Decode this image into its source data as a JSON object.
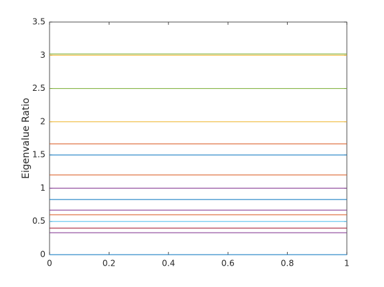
{
  "chart_data": {
    "type": "line",
    "y_label": "Eigenvalue Ratio",
    "x": [
      0,
      1
    ],
    "series": [
      {
        "color": "#77ac30",
        "values": [
          3.02,
          3.02
        ]
      },
      {
        "color": "#edb120",
        "values": [
          3.0,
          3.0
        ]
      },
      {
        "color": "#77ac30",
        "values": [
          2.5,
          2.5
        ]
      },
      {
        "color": "#edb120",
        "values": [
          2.0,
          2.0
        ]
      },
      {
        "color": "#d95319",
        "values": [
          1.667,
          1.667
        ]
      },
      {
        "color": "#0072bd",
        "values": [
          1.5,
          1.5
        ]
      },
      {
        "color": "#d95319",
        "values": [
          1.2,
          1.2
        ]
      },
      {
        "color": "#7e2f8e",
        "values": [
          1.0,
          1.0
        ]
      },
      {
        "color": "#0072bd",
        "values": [
          0.83,
          0.83
        ]
      },
      {
        "color": "#7e2f8e",
        "values": [
          0.67,
          0.67
        ]
      },
      {
        "color": "#d95319",
        "values": [
          0.6,
          0.6
        ]
      },
      {
        "color": "#4dbeee",
        "values": [
          0.5,
          0.5
        ]
      },
      {
        "color": "#a2142f",
        "values": [
          0.4,
          0.4
        ]
      },
      {
        "color": "#7e2f8e",
        "values": [
          0.33,
          0.33
        ]
      },
      {
        "color": "#0072bd",
        "values": [
          0.0,
          0.0
        ]
      }
    ],
    "xlim": [
      0,
      1
    ],
    "xticks": [
      0,
      0.2,
      0.4,
      0.6,
      0.8,
      1
    ],
    "ylim": [
      0,
      3.5
    ],
    "yticks": [
      0,
      0.5,
      1,
      1.5,
      2,
      2.5,
      3,
      3.5
    ],
    "grid": false
  }
}
